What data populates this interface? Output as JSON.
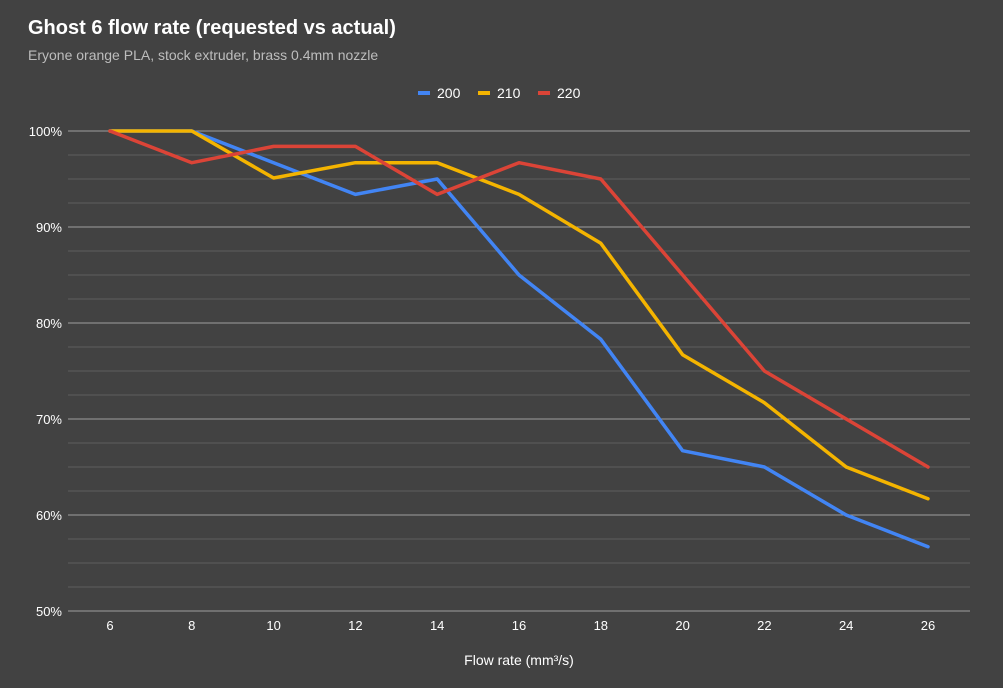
{
  "chart_data": {
    "type": "line",
    "title": "Ghost 6 flow rate (requested vs actual)",
    "subtitle": "Eryone orange PLA, stock extruder, brass 0.4mm nozzle",
    "xlabel": "Flow rate (mm³/s)",
    "ylabel": "",
    "x": [
      6,
      8,
      10,
      12,
      14,
      16,
      18,
      20,
      22,
      24,
      26
    ],
    "x_tick_labels": [
      "6",
      "8",
      "10",
      "12",
      "14",
      "16",
      "18",
      "20",
      "22",
      "24",
      "26"
    ],
    "ylim": [
      50,
      100
    ],
    "y_ticks": [
      100,
      90,
      80,
      70,
      60,
      50
    ],
    "y_tick_labels": [
      "100%",
      "90%",
      "80%",
      "70%",
      "60%",
      "50%"
    ],
    "y_minor_step": 2.5,
    "grid": true,
    "legend_position": "top-center",
    "series": [
      {
        "name": "200",
        "color": "#4285f4",
        "values": [
          100,
          100,
          96.7,
          93.4,
          95.0,
          85.0,
          78.3,
          66.7,
          65.0,
          60.0,
          56.7
        ]
      },
      {
        "name": "210",
        "color": "#f4b400",
        "values": [
          100,
          100,
          95.1,
          96.7,
          96.7,
          93.4,
          88.3,
          76.7,
          71.7,
          65.0,
          61.7
        ]
      },
      {
        "name": "220",
        "color": "#db4437",
        "values": [
          100,
          96.7,
          98.4,
          98.4,
          93.4,
          96.7,
          95.0,
          85.0,
          75.0,
          70.0,
          65.0
        ]
      }
    ]
  }
}
